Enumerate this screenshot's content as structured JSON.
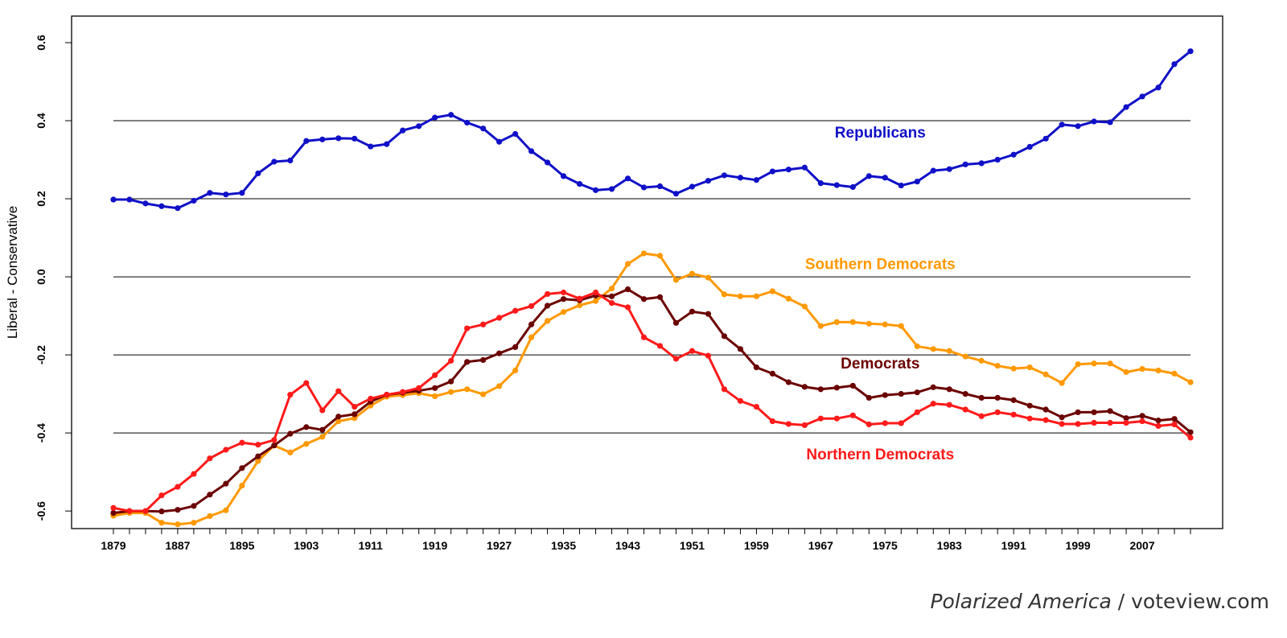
{
  "chart_data": {
    "type": "line",
    "title": "",
    "xlabel": "",
    "ylabel": "Liberal - Conservative",
    "xlim": [
      1873.8,
      2017.0
    ],
    "ylim": [
      -0.645,
      0.668
    ],
    "grid": "horizontal lines at -0.4, -0.2, 0.0, 0.2, 0.4",
    "legend": "none; series labels drawn inline",
    "x_ticks": [
      "1879",
      "1887",
      "1895",
      "1903",
      "1911",
      "1919",
      "1927",
      "1935",
      "1943",
      "1951",
      "1959",
      "1967",
      "1975",
      "1983",
      "1991",
      "1999",
      "2007"
    ],
    "y_ticks": [
      "-0.6",
      "-0.4",
      "-0.2",
      "0.0",
      "0.2",
      "0.4",
      "0.6"
    ],
    "x": [
      1879,
      1881,
      1883,
      1885,
      1887,
      1889,
      1891,
      1893,
      1895,
      1897,
      1899,
      1901,
      1903,
      1905,
      1907,
      1909,
      1911,
      1913,
      1915,
      1917,
      1919,
      1921,
      1923,
      1925,
      1927,
      1929,
      1931,
      1933,
      1935,
      1937,
      1939,
      1941,
      1943,
      1945,
      1947,
      1949,
      1951,
      1953,
      1955,
      1957,
      1959,
      1961,
      1963,
      1965,
      1967,
      1969,
      1971,
      1973,
      1975,
      1977,
      1979,
      1981,
      1983,
      1985,
      1987,
      1989,
      1991,
      1993,
      1995,
      1997,
      1999,
      2001,
      2003,
      2005,
      2007,
      2009,
      2011,
      2013
    ],
    "series": [
      {
        "name": "Republicans",
        "color": "#1010c8",
        "label_year": 1975,
        "label_value": 0.357,
        "values": [
          0.198,
          0.198,
          0.188,
          0.181,
          0.176,
          0.195,
          0.215,
          0.211,
          0.215,
          0.265,
          0.295,
          0.298,
          0.348,
          0.352,
          0.355,
          0.354,
          0.334,
          0.34,
          0.375,
          0.386,
          0.408,
          0.415,
          0.395,
          0.38,
          0.346,
          0.366,
          0.322,
          0.293,
          0.258,
          0.238,
          0.222,
          0.225,
          0.252,
          0.229,
          0.232,
          0.213,
          0.231,
          0.246,
          0.26,
          0.254,
          0.248,
          0.27,
          0.275,
          0.28,
          0.24,
          0.235,
          0.23,
          0.258,
          0.254,
          0.234,
          0.244,
          0.272,
          0.276,
          0.288,
          0.291,
          0.3,
          0.313,
          0.333,
          0.354,
          0.39,
          0.386,
          0.398,
          0.396,
          0.435,
          0.462,
          0.485,
          0.545,
          0.578
        ]
      },
      {
        "name": "Southern Democrats",
        "color": "#ff9900",
        "label_year": 1975,
        "label_value": 0.02,
        "values": [
          -0.612,
          -0.605,
          -0.605,
          -0.63,
          -0.634,
          -0.63,
          -0.613,
          -0.598,
          -0.535,
          -0.472,
          -0.432,
          -0.45,
          -0.428,
          -0.41,
          -0.37,
          -0.362,
          -0.33,
          -0.307,
          -0.303,
          -0.298,
          -0.306,
          -0.295,
          -0.288,
          -0.301,
          -0.28,
          -0.24,
          -0.155,
          -0.113,
          -0.09,
          -0.073,
          -0.062,
          -0.03,
          0.033,
          0.06,
          0.054,
          -0.008,
          0.008,
          -0.002,
          -0.045,
          -0.05,
          -0.05,
          -0.037,
          -0.056,
          -0.076,
          -0.126,
          -0.116,
          -0.116,
          -0.12,
          -0.122,
          -0.126,
          -0.178,
          -0.185,
          -0.19,
          -0.204,
          -0.215,
          -0.228,
          -0.235,
          -0.232,
          -0.25,
          -0.272,
          -0.224,
          -0.222,
          -0.222,
          -0.244,
          -0.236,
          -0.24,
          -0.248,
          -0.27
        ]
      },
      {
        "name": "Democrats",
        "color": "#6b0000",
        "label_year": 1975,
        "label_value": -0.235,
        "values": [
          -0.605,
          -0.6,
          -0.6,
          -0.601,
          -0.597,
          -0.587,
          -0.558,
          -0.53,
          -0.49,
          -0.46,
          -0.432,
          -0.402,
          -0.385,
          -0.392,
          -0.358,
          -0.352,
          -0.32,
          -0.302,
          -0.297,
          -0.292,
          -0.285,
          -0.268,
          -0.218,
          -0.213,
          -0.196,
          -0.18,
          -0.122,
          -0.074,
          -0.057,
          -0.06,
          -0.048,
          -0.05,
          -0.032,
          -0.057,
          -0.052,
          -0.118,
          -0.089,
          -0.095,
          -0.152,
          -0.185,
          -0.232,
          -0.248,
          -0.27,
          -0.282,
          -0.288,
          -0.284,
          -0.279,
          -0.31,
          -0.303,
          -0.3,
          -0.296,
          -0.283,
          -0.288,
          -0.3,
          -0.31,
          -0.31,
          -0.316,
          -0.33,
          -0.34,
          -0.36,
          -0.347,
          -0.347,
          -0.344,
          -0.362,
          -0.356,
          -0.368,
          -0.364,
          -0.398
        ]
      },
      {
        "name": "Northern Democrats",
        "color": "#ff1a1a",
        "label_year": 1975,
        "label_value": -0.468,
        "values": [
          -0.592,
          -0.6,
          -0.6,
          -0.56,
          -0.538,
          -0.505,
          -0.465,
          -0.443,
          -0.425,
          -0.43,
          -0.418,
          -0.302,
          -0.272,
          -0.342,
          -0.293,
          -0.333,
          -0.312,
          -0.302,
          -0.295,
          -0.285,
          -0.252,
          -0.215,
          -0.132,
          -0.122,
          -0.105,
          -0.087,
          -0.075,
          -0.044,
          -0.04,
          -0.056,
          -0.04,
          -0.067,
          -0.078,
          -0.155,
          -0.177,
          -0.21,
          -0.19,
          -0.202,
          -0.288,
          -0.318,
          -0.333,
          -0.37,
          -0.377,
          -0.38,
          -0.363,
          -0.363,
          -0.355,
          -0.378,
          -0.375,
          -0.375,
          -0.347,
          -0.325,
          -0.328,
          -0.34,
          -0.357,
          -0.347,
          -0.353,
          -0.363,
          -0.367,
          -0.377,
          -0.377,
          -0.374,
          -0.374,
          -0.374,
          -0.37,
          -0.382,
          -0.378,
          -0.412
        ]
      }
    ]
  },
  "credit": {
    "italic": "Polarized America",
    "rest": " / voteview.com"
  }
}
